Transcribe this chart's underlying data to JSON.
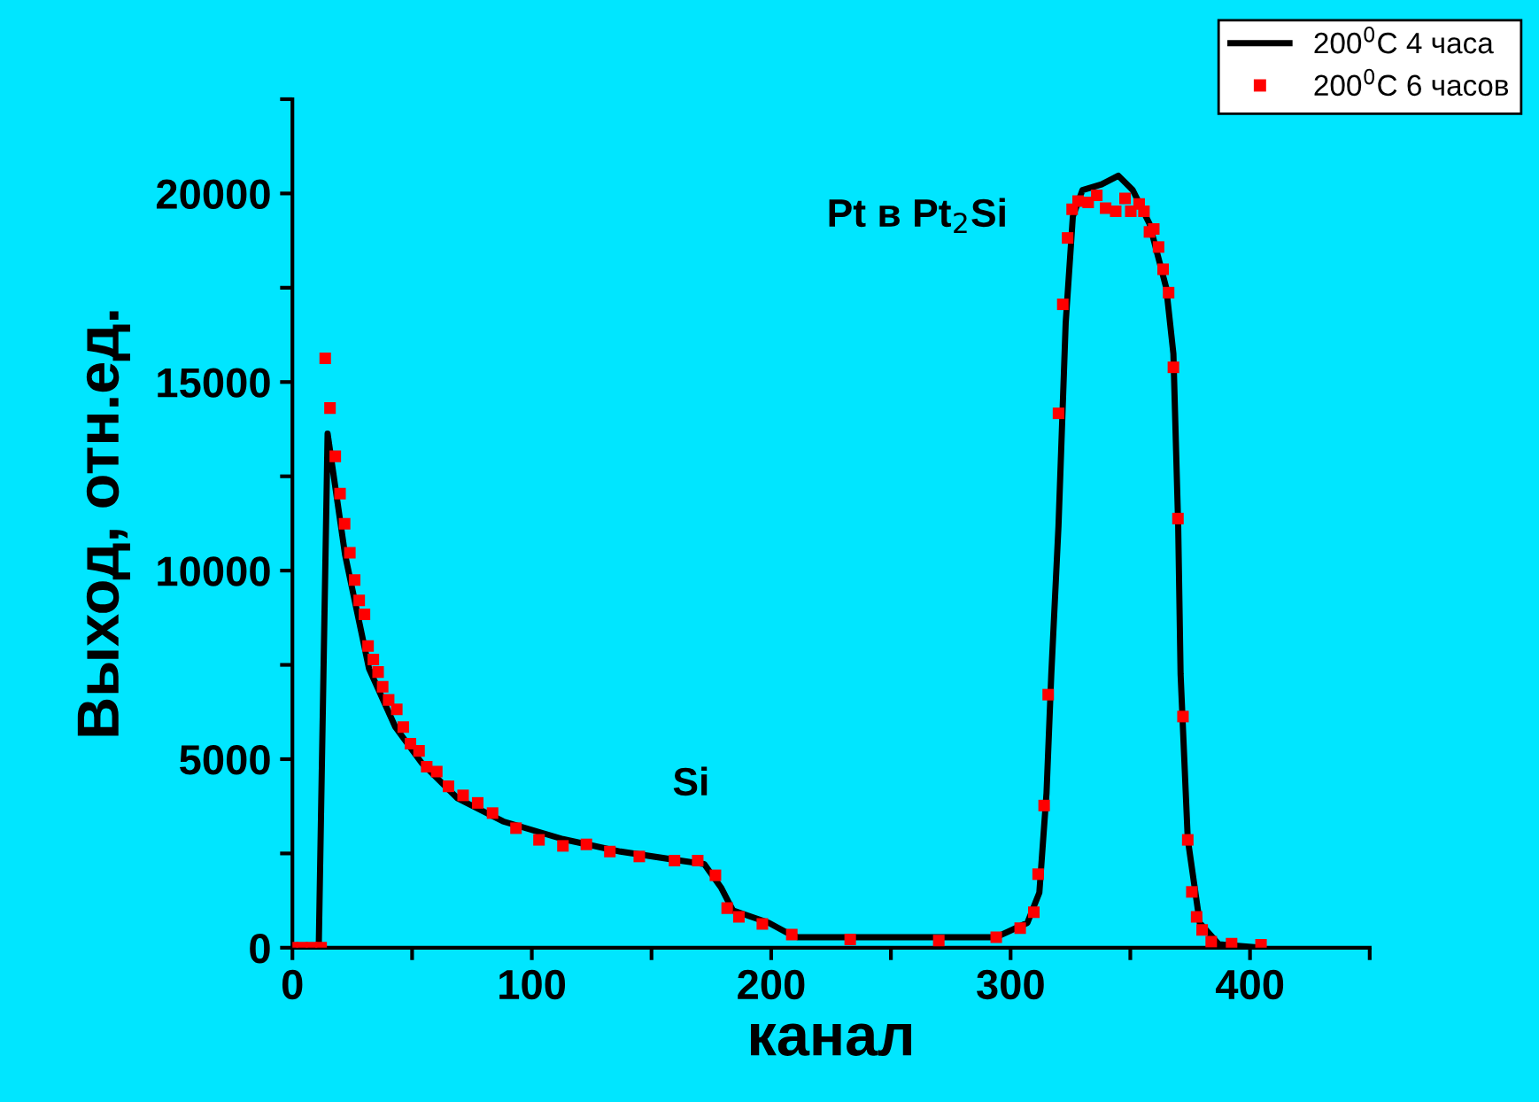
{
  "chart_data": {
    "type": "line",
    "xlabel": "канал",
    "ylabel": "Выход, отн.ед.",
    "xlim": [
      0,
      450
    ],
    "ylim": [
      0,
      22500
    ],
    "xticks": [
      0,
      {
        "value": 50,
        "label": null
      },
      100,
      {
        "value": 150,
        "label": null
      },
      200,
      {
        "value": 250,
        "label": null
      },
      300,
      {
        "value": 350,
        "label": null
      },
      400,
      {
        "value": 450,
        "label": null
      }
    ],
    "yticks": [
      0,
      {
        "value": 2500,
        "label": null
      },
      5000,
      {
        "value": 7500,
        "label": null
      },
      10000,
      {
        "value": 12500,
        "label": null
      },
      15000,
      {
        "value": 17500,
        "label": null
      },
      20000,
      {
        "value": 22500,
        "label": null
      }
    ],
    "grid": false,
    "legend": "top right",
    "annotations": [
      "Si",
      "Pt в Pt$_{2}$Si"
    ],
    "series": [
      {
        "name": "200$^{0}$C 4 часа",
        "color": "#000000",
        "marker": "none",
        "line_style": "solid",
        "x": [
          0,
          11,
          14.7,
          22,
          32,
          43,
          54,
          69,
          88,
          113,
          137,
          162,
          172,
          179,
          184,
          199,
          206,
          211,
          246,
          294,
          307,
          312,
          315,
          317,
          320,
          323,
          326,
          330,
          338,
          345,
          351,
          358,
          365,
          368,
          370,
          371,
          374,
          379,
          387,
          405
        ],
        "values": [
          0,
          0,
          13630,
          10420,
          7400,
          5850,
          4900,
          3960,
          3350,
          2880,
          2550,
          2310,
          2220,
          1600,
          990,
          660,
          420,
          280,
          280,
          280,
          660,
          1460,
          4100,
          7260,
          11180,
          16560,
          19390,
          20090,
          20240,
          20470,
          20090,
          19200,
          17500,
          15750,
          11180,
          7260,
          2880,
          660,
          90,
          0
        ]
      },
      {
        "name": "200$^{0}$C 6 часов",
        "type": "scatter",
        "color": "#ff0000",
        "marker": "square",
        "line_style": "none",
        "x": [
          0,
          4,
          8,
          12,
          13.7,
          15.7,
          17.9,
          19.9,
          21.8,
          24,
          26,
          27.9,
          30.1,
          31.6,
          33.8,
          35.8,
          37.7,
          40.2,
          43.6,
          46.3,
          49.3,
          52.9,
          56.1,
          60.3,
          65.2,
          71.3,
          77.4,
          83.6,
          93.4,
          103,
          113,
          122.8,
          132.6,
          144.9,
          159.6,
          169.3,
          176.7,
          181.6,
          186.5,
          196.3,
          208.6,
          233,
          270,
          294,
          304,
          309.7,
          311.5,
          314,
          315.7,
          320,
          321.8,
          323.8,
          325.7,
          328.2,
          332.4,
          336,
          339.7,
          343.9,
          347.8,
          350.2,
          353.7,
          355.7,
          358,
          359.8,
          361.8,
          363.7,
          366,
          368,
          369.9,
          372,
          374,
          375.7,
          377.7,
          380,
          383.8,
          392.3,
          404.6
        ],
        "values": [
          0,
          0,
          0,
          0,
          15630,
          14310,
          13030,
          12040,
          11240,
          10470,
          9750,
          9210,
          8840,
          8000,
          7640,
          7310,
          6920,
          6570,
          6320,
          5850,
          5410,
          5220,
          4800,
          4670,
          4280,
          4040,
          3840,
          3570,
          3170,
          2860,
          2700,
          2740,
          2550,
          2420,
          2310,
          2310,
          1920,
          1050,
          820,
          630,
          350,
          220,
          190,
          280,
          520,
          940,
          1950,
          3770,
          6710,
          14170,
          17060,
          18820,
          19580,
          19800,
          19760,
          19950,
          19610,
          19530,
          19870,
          19530,
          19720,
          19530,
          18980,
          19060,
          18580,
          17990,
          17370,
          15390,
          11380,
          6130,
          2860,
          1480,
          820,
          470,
          160,
          110,
          80
        ]
      }
    ]
  }
}
